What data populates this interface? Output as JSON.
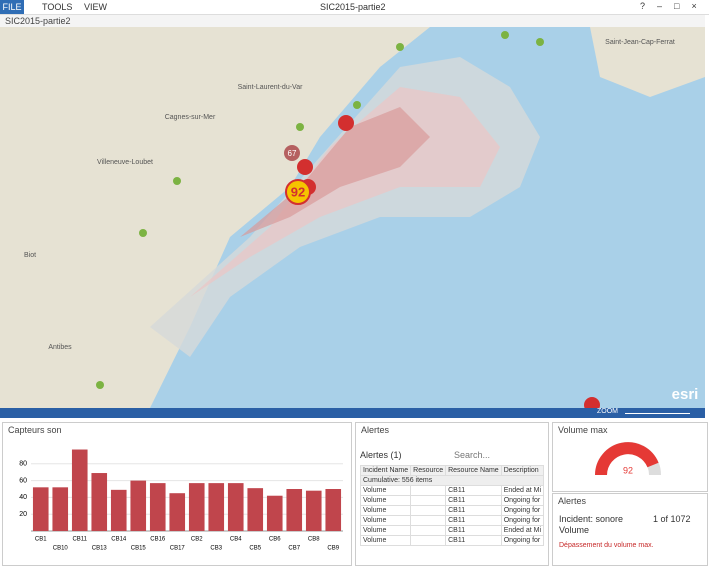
{
  "window": {
    "tabs": [
      "FILE",
      "TOOLS",
      "VIEW"
    ],
    "title": "SIC2015-partie2"
  },
  "map": {
    "title": "SIC2015-partie2",
    "places": [
      "Saint-Laurent-du-Var",
      "Cagnes-sur-Mer",
      "Villeneuve-Loubet",
      "Biot",
      "Saint-Jean-Cap-Ferrat",
      "Antibes"
    ],
    "markers": [
      "67",
      "92"
    ],
    "zoom": "ZOOM",
    "logo": "esri"
  },
  "chart_data": {
    "type": "bar",
    "title": "Capteurs son",
    "categories": [
      "CB1",
      "CB10",
      "CB11",
      "CB13",
      "CB14",
      "CB15",
      "CB16",
      "CB17",
      "CB2",
      "CB3",
      "CB4",
      "CB5",
      "CB6",
      "CB7",
      "CB8",
      "CB9"
    ],
    "values": [
      52,
      52,
      97,
      69,
      49,
      60,
      57,
      45,
      57,
      57,
      57,
      51,
      42,
      50,
      48,
      50
    ],
    "color": "#c0454c",
    "ylim": [
      0,
      100
    ],
    "yticks": [
      20,
      40,
      60,
      80
    ],
    "grid": true
  },
  "alerts": {
    "title": "Alertes",
    "label": "Alertes (1)",
    "search": "Search...",
    "columns": [
      "Incident Name",
      "Resource",
      "Resource Name",
      "Description"
    ],
    "group": "Cumulative: 556 items",
    "rows": [
      [
        "Volume",
        "CB11",
        "Ended at Mi"
      ],
      [
        "Volume",
        "CB11",
        "Ongoing for"
      ],
      [
        "Volume",
        "CB11",
        "Ongoing for"
      ],
      [
        "Volume",
        "CB11",
        "Ongoing for"
      ],
      [
        "Volume",
        "CB11",
        "Ended at Mi"
      ],
      [
        "Volume",
        "CB11",
        "Ongoing for"
      ]
    ]
  },
  "gauge": {
    "title": "Volume max",
    "value": "92"
  },
  "alert_detail": {
    "title": "Alertes",
    "incident": "Incident: sonore",
    "pager": "1 of 1072",
    "name": "Volume",
    "description": "Dépassement du volume max."
  }
}
